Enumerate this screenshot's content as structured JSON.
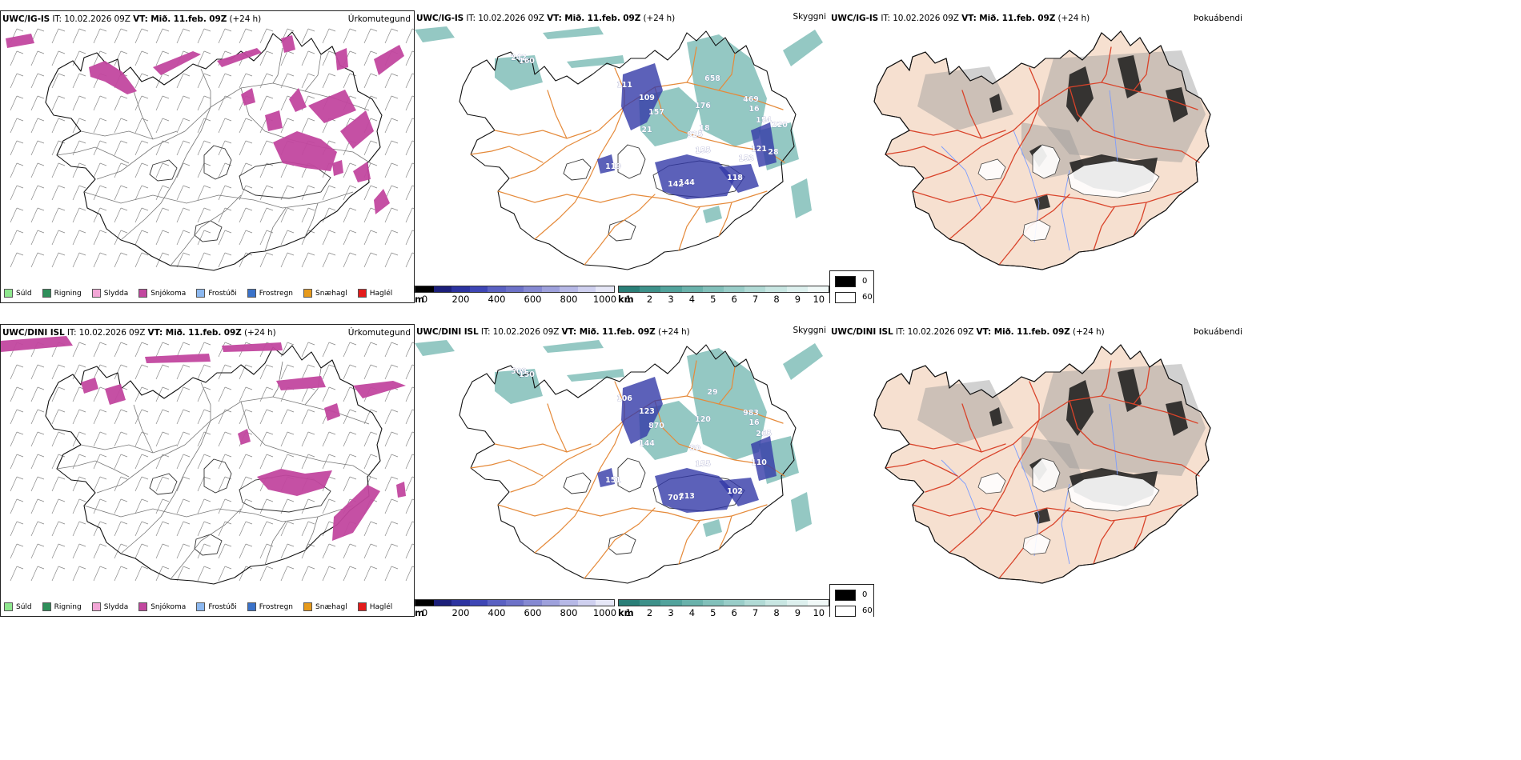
{
  "colors": {
    "snow": "#c2479f",
    "cloud_teal": "#3c9a91",
    "cloud_blue": "#3339a8",
    "road_orange": "#e58a3a",
    "road_red": "#d9432a",
    "land_fill": "#f6e0d0",
    "river": "#7b9cff"
  },
  "rows": [
    {
      "model": "UWC/IG-IS",
      "it_label": "IT: 10.02.2026 09Z",
      "vt_label": "VT: Mið. 11.feb. 09Z",
      "lead": "(+24 h)",
      "precip_title": "Úrkomutegund",
      "cloud_title": "Skyggni",
      "fog_title": "Þokuábendi",
      "cloud_labels": [
        "242",
        "160",
        "111",
        "109",
        "157",
        "925",
        "155",
        "176",
        "469",
        "154",
        "121",
        "118",
        "144",
        "142",
        "119",
        "21",
        "16",
        "658",
        "18",
        "220",
        "28",
        "153"
      ]
    },
    {
      "model": "UWC/DINI ISL",
      "it_label": "IT: 10.02.2026 09Z",
      "vt_label": "VT: Mið. 11.feb. 09Z",
      "lead": "(+24 h)",
      "precip_title": "Úrkomutegund",
      "cloud_title": "Skyggni",
      "fog_title": "Þokuábendi",
      "cloud_labels": [
        "509",
        "150",
        "106",
        "123",
        "870",
        "80",
        "155",
        "120",
        "983",
        "265",
        "110",
        "102",
        "213",
        "707",
        "151",
        "144",
        "16",
        "29"
      ]
    }
  ],
  "precip_legend": [
    {
      "label": "Súld",
      "color": "#8fe88f"
    },
    {
      "label": "Rigning",
      "color": "#2f8f5a"
    },
    {
      "label": "Slydda",
      "color": "#f2a6d6"
    },
    {
      "label": "Snjókoma",
      "color": "#c2479f"
    },
    {
      "label": "Frostúði",
      "color": "#8cb8f0"
    },
    {
      "label": "Frostregn",
      "color": "#3a72c9"
    },
    {
      "label": "Snæhagl",
      "color": "#e69a1c"
    },
    {
      "label": "Haglél",
      "color": "#e31b1b"
    }
  ],
  "ceiling_bar": {
    "unit": "m",
    "ticks": [
      "0",
      "200",
      "400",
      "600",
      "800",
      "1000"
    ],
    "colors": [
      "#000000",
      "#1c1f7a",
      "#2c33a0",
      "#3e46b5",
      "#5a61c2",
      "#6d72c8",
      "#8589d2",
      "#9ea1dc",
      "#b6b8e6",
      "#cfd0ef",
      "#e6e7f7"
    ]
  },
  "vis_bar": {
    "unit": "km",
    "ticks": [
      "1",
      "2",
      "3",
      "4",
      "5",
      "6",
      "7",
      "8",
      "9",
      "10"
    ],
    "colors": [
      "#2a7f78",
      "#3e918a",
      "#52a39c",
      "#6ab2ab",
      "#82c0ba",
      "#99cdc8",
      "#b1dad5",
      "#c8e6e2",
      "#ddf0ee",
      "#f1f9f8"
    ]
  },
  "fog_legend": [
    {
      "label": "0",
      "color": "#000000"
    },
    {
      "label": "60",
      "color": "#ffffff"
    }
  ]
}
